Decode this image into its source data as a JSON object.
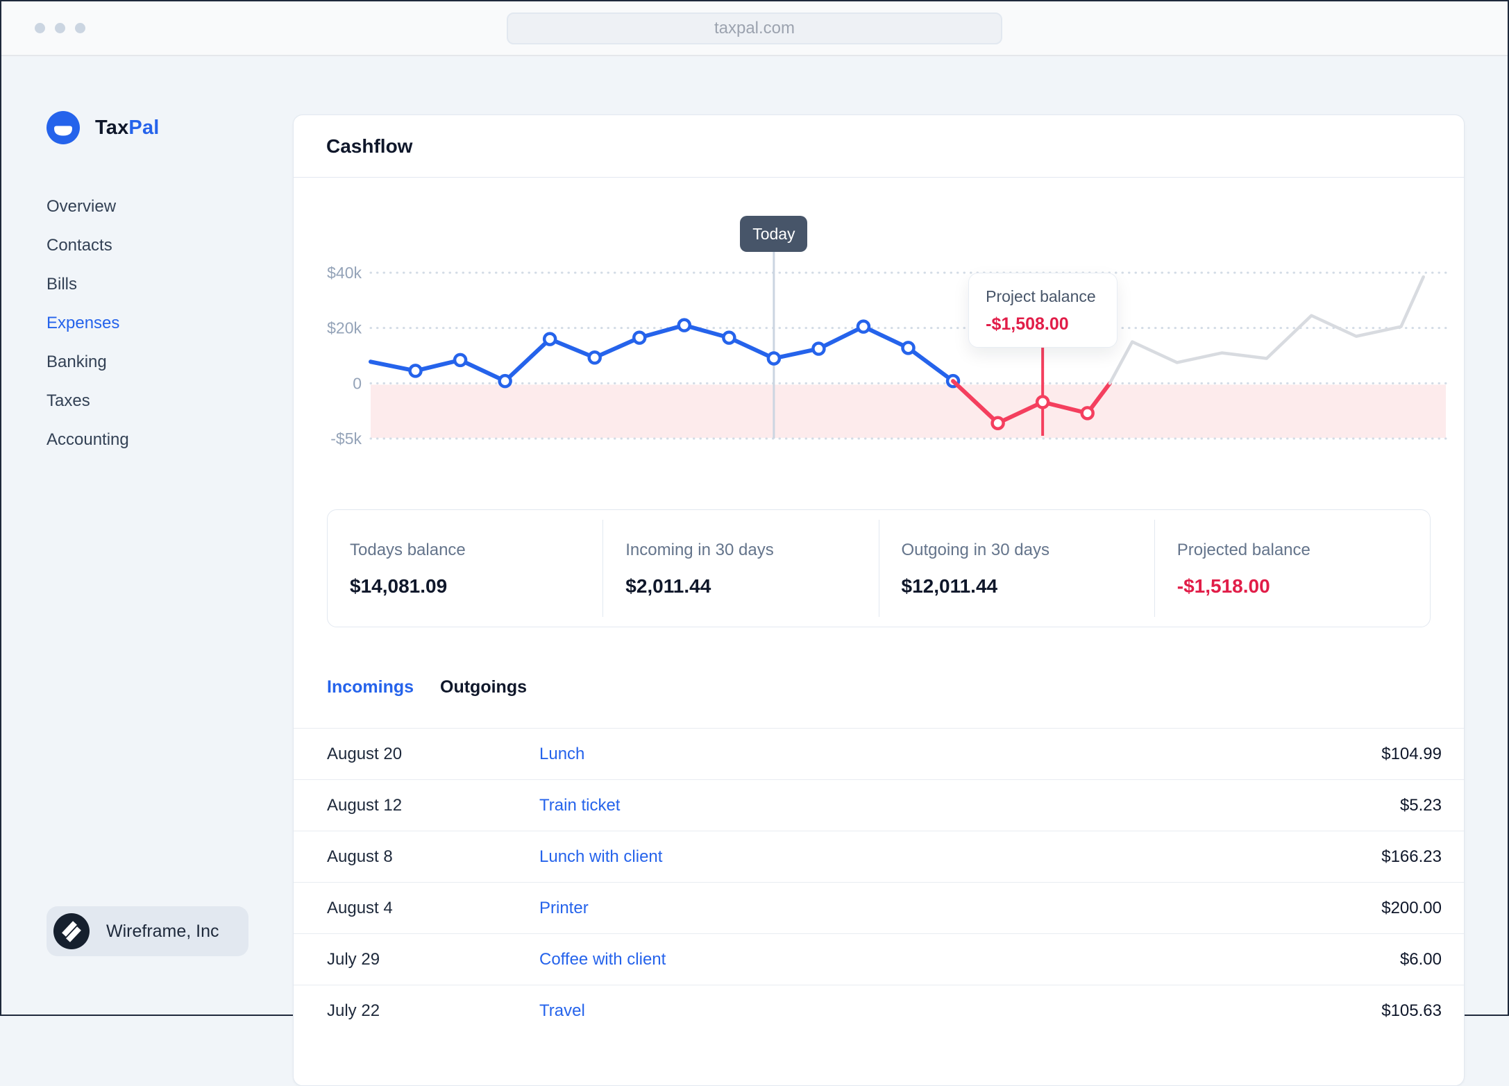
{
  "browser": {
    "url": "taxpal.com"
  },
  "sidebar": {
    "brand": {
      "name_primary": "Tax",
      "name_secondary": "Pal"
    },
    "items": [
      {
        "label": "Overview",
        "active": false
      },
      {
        "label": "Contacts",
        "active": false
      },
      {
        "label": "Bills",
        "active": false
      },
      {
        "label": "Expenses",
        "active": true
      },
      {
        "label": "Banking",
        "active": false
      },
      {
        "label": "Taxes",
        "active": false
      },
      {
        "label": "Accounting",
        "active": false
      }
    ],
    "org": {
      "name": "Wireframe, Inc"
    }
  },
  "card": {
    "title": "Cashflow"
  },
  "chart_data": {
    "type": "line",
    "title": "Cashflow",
    "x_range": [
      0,
      24
    ],
    "grid": "dotted-horizontal",
    "y_gridlines": [
      {
        "label": "$40k",
        "value": 40000
      },
      {
        "label": "$20k",
        "value": 20000
      },
      {
        "label": "0",
        "value": 0
      },
      {
        "label": "-$5k",
        "value": -5000
      }
    ],
    "negative_band": {
      "from": 0,
      "to": -5000,
      "color": "#fdebec"
    },
    "today_marker": {
      "label": "Today",
      "x_index": 9
    },
    "tooltip": {
      "label": "Project balance",
      "value": "-$1,508.00",
      "x_index": 15
    },
    "series": [
      {
        "name": "actual-balance",
        "color": "#2563eb",
        "x": [
          0,
          1,
          2,
          3,
          4,
          5,
          6,
          7,
          8,
          9,
          10,
          11,
          12,
          13
        ],
        "values": [
          7800,
          4500,
          8400,
          800,
          16000,
          9300,
          16500,
          21000,
          16500,
          9000,
          12500,
          20500,
          12800,
          800
        ],
        "marker_x": [
          1,
          2,
          3,
          4,
          5,
          6,
          7,
          8,
          9,
          10,
          11,
          12,
          13
        ]
      },
      {
        "name": "overdraft",
        "color": "#f43f5e",
        "x": [
          13,
          14,
          15,
          16,
          16.5
        ],
        "values": [
          800,
          -3600,
          -1700,
          -2700,
          0
        ],
        "marker_x": [
          14,
          15,
          16
        ]
      },
      {
        "name": "projected-balance",
        "color": "#d8dbe0",
        "x": [
          16.5,
          17,
          18,
          19,
          20,
          21,
          22,
          23,
          23.5
        ],
        "values": [
          0,
          15000,
          7500,
          11000,
          9000,
          24500,
          17000,
          20500,
          38500
        ],
        "marker_x": []
      }
    ]
  },
  "stats": [
    {
      "label": "Todays balance",
      "value": "$14,081.09",
      "negative": false
    },
    {
      "label": "Incoming in 30 days",
      "value": "$2,011.44",
      "negative": false
    },
    {
      "label": "Outgoing in 30 days",
      "value": "$12,011.44",
      "negative": false
    },
    {
      "label": "Projected balance",
      "value": "-$1,518.00",
      "negative": true
    }
  ],
  "tabs": [
    {
      "label": "Incomings",
      "active": true
    },
    {
      "label": "Outgoings",
      "active": false
    }
  ],
  "transactions": {
    "rows": [
      {
        "date": "August 20",
        "description": "Lunch",
        "amount": "$104.99"
      },
      {
        "date": "August 12",
        "description": "Train ticket",
        "amount": "$5.23"
      },
      {
        "date": "August 8",
        "description": "Lunch with client",
        "amount": "$166.23"
      },
      {
        "date": "August 4",
        "description": "Printer",
        "amount": "$200.00"
      },
      {
        "date": "July 29",
        "description": "Coffee with client",
        "amount": "$6.00"
      },
      {
        "date": "July 22",
        "description": "Travel",
        "amount": "$105.63"
      }
    ]
  },
  "colors": {
    "accent": "#2563eb",
    "negative": "#e11d48",
    "line_actual": "#2563eb",
    "line_overdraft": "#f43f5e",
    "line_projected": "#d8dbe0",
    "gridline": "#cbd5e1",
    "today_badge_bg": "#475569"
  }
}
